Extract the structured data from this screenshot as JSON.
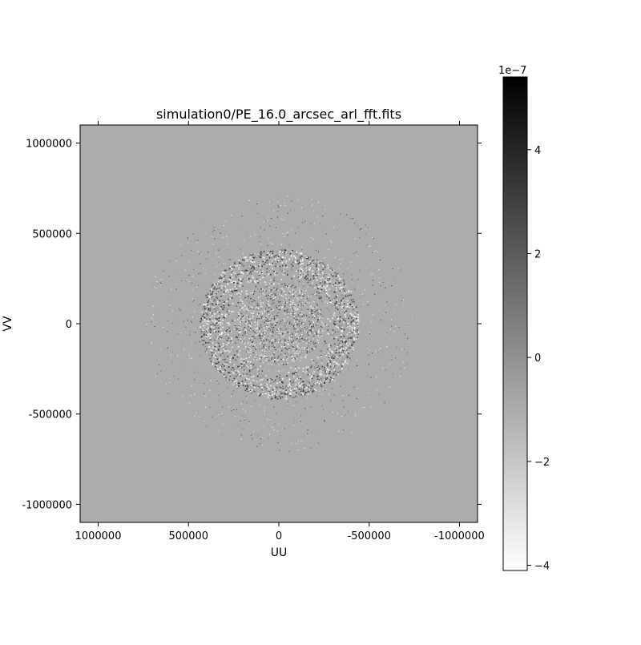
{
  "chart_data": {
    "type": "heatmap",
    "title": "simulation0/PE_16.0_arcsec_arl_fft.fits",
    "xlabel": "UU",
    "ylabel": "VV",
    "xlim": [
      1100000,
      -1100000
    ],
    "ylim": [
      -1100000,
      1100000
    ],
    "x_ticks": [
      {
        "value": 1000000,
        "label": "1000000"
      },
      {
        "value": 500000,
        "label": "500000"
      },
      {
        "value": 0,
        "label": "0"
      },
      {
        "value": -500000,
        "label": "-500000"
      },
      {
        "value": -1000000,
        "label": "-1000000"
      }
    ],
    "y_ticks": [
      {
        "value": 1000000,
        "label": "1000000"
      },
      {
        "value": 500000,
        "label": "500000"
      },
      {
        "value": 0,
        "label": "0"
      },
      {
        "value": -500000,
        "label": "-500000"
      },
      {
        "value": -1000000,
        "label": "-1000000"
      }
    ],
    "colormap": "grayscale, white = min, black = max",
    "background_value": 0,
    "pattern": {
      "description": "noisy ring of uv samples centered at origin",
      "ring_inner_radius": 250000,
      "ring_outer_radius": 450000,
      "halo_outer_radius": 750000
    },
    "colorbar": {
      "min": -4.1,
      "max": 5.4,
      "exponent_label": "1e−7",
      "ticks": [
        {
          "value": 4,
          "label": "4"
        },
        {
          "value": 2,
          "label": "2"
        },
        {
          "value": 0,
          "label": "0"
        },
        {
          "value": -2,
          "label": "−2"
        },
        {
          "value": -4,
          "label": "−4"
        }
      ]
    }
  }
}
